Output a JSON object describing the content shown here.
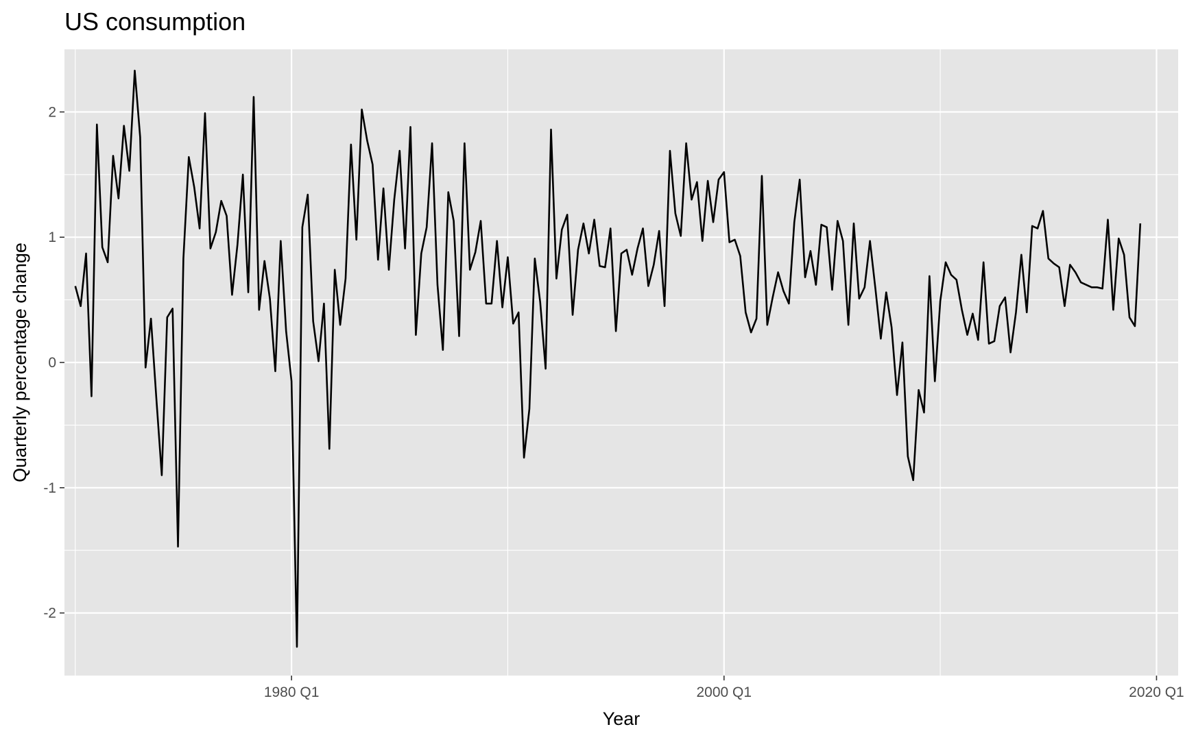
{
  "chart_data": {
    "type": "line",
    "title": "US consumption",
    "xlabel": "Year",
    "ylabel": "Quarterly percentage change",
    "x_start": "1970 Q1",
    "frequency": "quarterly",
    "xlim": [
      "1969 Q3",
      "2021 Q1"
    ],
    "ylim": [
      -2.5,
      2.5
    ],
    "x_ticks": [
      "1980 Q1",
      "2000 Q1",
      "2020 Q1"
    ],
    "y_ticks": [
      -2,
      -1,
      0,
      1,
      2
    ],
    "y_tick_labels": [
      "-2",
      "-1",
      "0",
      "1",
      "2"
    ],
    "grid": true,
    "background": "#e5e5e5",
    "line_color": "#000000",
    "series": [
      {
        "values": [
          0.61,
          0.45,
          0.87,
          -0.27,
          1.9,
          0.92,
          0.8,
          1.65,
          1.31,
          1.89,
          1.53,
          2.33,
          1.8,
          -0.04,
          0.35,
          -0.29,
          -0.9,
          0.36,
          0.43,
          -1.47,
          0.83,
          1.64,
          1.4,
          1.07,
          1.99,
          0.91,
          1.04,
          1.29,
          1.17,
          0.54,
          0.94,
          1.5,
          0.56,
          2.12,
          0.42,
          0.81,
          0.51,
          -0.07,
          0.97,
          0.25,
          -0.15,
          -2.27,
          1.08,
          1.34,
          0.33,
          0.01,
          0.47,
          -0.69,
          0.74,
          0.3,
          0.67,
          1.74,
          0.98,
          2.02,
          1.77,
          1.58,
          0.82,
          1.39,
          0.74,
          1.3,
          1.69,
          0.91,
          1.88,
          0.22,
          0.87,
          1.08,
          1.75,
          0.62,
          0.1,
          1.36,
          1.13,
          0.21,
          1.75,
          0.74,
          0.88,
          1.13,
          0.47,
          0.47,
          0.97,
          0.44,
          0.84,
          0.31,
          0.4,
          -0.76,
          -0.37,
          0.83,
          0.48,
          -0.05,
          1.86,
          0.67,
          1.06,
          1.18,
          0.38,
          0.9,
          1.11,
          0.87,
          1.14,
          0.77,
          0.76,
          1.07,
          0.25,
          0.87,
          0.9,
          0.7,
          0.91,
          1.07,
          0.61,
          0.78,
          1.05,
          0.45,
          1.69,
          1.19,
          1.01,
          1.75,
          1.3,
          1.44,
          0.97,
          1.45,
          1.12,
          1.46,
          1.52,
          0.96,
          0.98,
          0.85,
          0.4,
          0.24,
          0.35,
          1.49,
          0.3,
          0.52,
          0.72,
          0.57,
          0.47,
          1.12,
          1.46,
          0.68,
          0.89,
          0.62,
          1.1,
          1.08,
          0.58,
          1.13,
          0.97,
          0.3,
          1.11,
          0.51,
          0.6,
          0.97,
          0.59,
          0.19,
          0.56,
          0.28,
          -0.26,
          0.16,
          -0.75,
          -0.94,
          -0.22,
          -0.4,
          0.69,
          -0.15,
          0.49,
          0.8,
          0.7,
          0.66,
          0.42,
          0.22,
          0.39,
          0.18,
          0.8,
          0.15,
          0.17,
          0.45,
          0.52,
          0.08,
          0.4,
          0.86,
          0.4,
          1.09,
          1.07,
          1.21,
          0.83,
          0.79,
          0.76,
          0.45,
          0.78,
          0.72,
          0.64,
          0.62,
          0.6,
          0.6,
          0.59,
          1.14,
          0.42,
          0.99,
          0.86,
          0.36,
          0.29,
          1.11
        ]
      }
    ]
  }
}
